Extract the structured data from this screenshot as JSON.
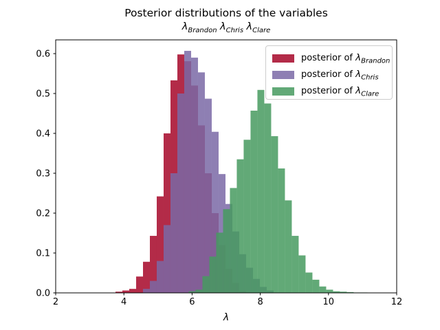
{
  "title": {
    "line1": "Posterior distributions of the variables"
  },
  "subtitle_parts": [
    {
      "symbol": "λ",
      "sub": "Brandon"
    },
    {
      "symbol": "λ",
      "sub": "Chris"
    },
    {
      "symbol": "λ",
      "sub": "Clare"
    }
  ],
  "legend": {
    "items": [
      {
        "prefix": "posterior of ",
        "symbol": "λ",
        "sub": "Brandon",
        "color": "#A60628"
      },
      {
        "prefix": "posterior of ",
        "symbol": "λ",
        "sub": "Chris",
        "color": "#7A68A6"
      },
      {
        "prefix": "posterior of ",
        "symbol": "λ",
        "sub": "Clare",
        "color": "#479A5F"
      }
    ]
  },
  "axes": {
    "xlabel": "λ",
    "x_ticks": [
      2,
      4,
      6,
      8,
      10,
      12
    ],
    "y_ticks": [
      0.0,
      0.1,
      0.2,
      0.3,
      0.4,
      0.5,
      0.6
    ],
    "xlim": [
      2,
      12
    ],
    "ylim": [
      0,
      0.6345
    ],
    "grid": false,
    "legend_position": "upper right"
  },
  "chart_data": {
    "type": "bar",
    "subtype": "histogram",
    "title": "Posterior distributions of the variables λ_Brandon λ_Chris λ_Clare",
    "xlabel": "λ",
    "ylabel": "",
    "xlim": [
      2,
      12
    ],
    "ylim": [
      0,
      0.6345
    ],
    "alpha": 0.85,
    "series": [
      {
        "name": "posterior of λ_Brandon",
        "color": "#A60628",
        "bin_start": 3.754,
        "bin_width": 0.2016,
        "values": [
          0.003,
          0.006,
          0.01,
          0.041,
          0.078,
          0.143,
          0.242,
          0.4,
          0.533,
          0.598,
          0.581,
          0.52,
          0.42,
          0.3,
          0.2,
          0.12,
          0.06,
          0.025,
          0.005
        ]
      },
      {
        "name": "posterior of λ_Chris",
        "color": "#7A68A6",
        "bin_start": 4.56,
        "bin_width": 0.2016,
        "values": [
          0.01,
          0.03,
          0.08,
          0.17,
          0.3,
          0.5,
          0.607,
          0.59,
          0.553,
          0.487,
          0.404,
          0.298,
          0.223,
          0.154,
          0.097,
          0.063,
          0.035,
          0.015,
          0.006
        ]
      },
      {
        "name": "posterior of λ_Clare",
        "color": "#479A5F",
        "bin_start": 5.9,
        "bin_width": 0.2016,
        "values": [
          0.004,
          0.008,
          0.042,
          0.091,
          0.151,
          0.21,
          0.263,
          0.335,
          0.384,
          0.457,
          0.509,
          0.475,
          0.393,
          0.312,
          0.232,
          0.143,
          0.094,
          0.051,
          0.033,
          0.016,
          0.008,
          0.004,
          0.003,
          0.002,
          0.001,
          0.001
        ]
      }
    ]
  }
}
